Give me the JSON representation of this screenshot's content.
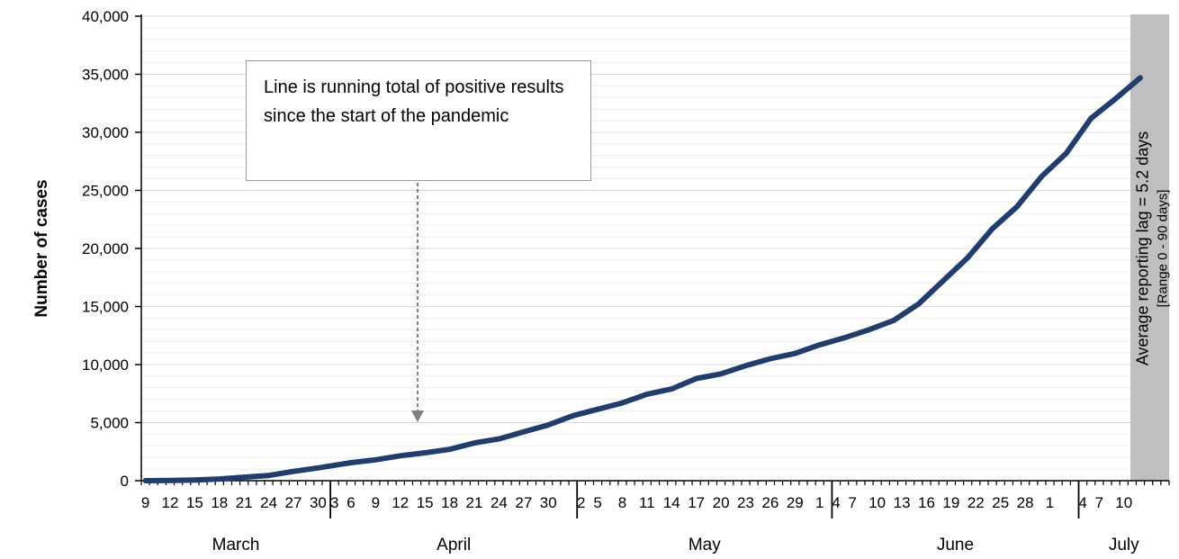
{
  "chart_data": {
    "type": "line",
    "ylabel": "Number of cases",
    "ylim": [
      0,
      40000
    ],
    "y_ticks": [
      "0",
      "5,000",
      "10,000",
      "15,000",
      "20,000",
      "25,000",
      "30,000",
      "35,000",
      "40,000"
    ],
    "y_tick_values": [
      0,
      5000,
      10000,
      15000,
      20000,
      25000,
      30000,
      35000,
      40000
    ],
    "x_start": "2020-03-09",
    "x_end": "2020-07-11",
    "x_tick_labels": [
      "9",
      "12",
      "15",
      "18",
      "21",
      "24",
      "27",
      "30",
      "3",
      "6",
      "9",
      "12",
      "15",
      "18",
      "21",
      "24",
      "27",
      "30",
      "2",
      "5",
      "8",
      "11",
      "14",
      "17",
      "20",
      "23",
      "26",
      "29",
      "1",
      "4",
      "7",
      "10",
      "13",
      "16",
      "19",
      "22",
      "25",
      "28",
      "1",
      "4",
      "7",
      "10"
    ],
    "months": [
      "March",
      "April",
      "May",
      "June",
      "July"
    ],
    "grid": true,
    "series": [
      {
        "name": "",
        "color": "#1f3d6e",
        "points": [
          [
            "2020-03-09",
            0
          ],
          [
            "2020-03-12",
            20
          ],
          [
            "2020-03-15",
            60
          ],
          [
            "2020-03-18",
            150
          ],
          [
            "2020-03-21",
            300
          ],
          [
            "2020-03-24",
            450
          ],
          [
            "2020-03-27",
            800
          ],
          [
            "2020-03-30",
            1100
          ],
          [
            "2020-04-03",
            1550
          ],
          [
            "2020-04-06",
            1800
          ],
          [
            "2020-04-09",
            2150
          ],
          [
            "2020-04-12",
            2400
          ],
          [
            "2020-04-15",
            2700
          ],
          [
            "2020-04-18",
            3250
          ],
          [
            "2020-04-21",
            3600
          ],
          [
            "2020-04-24",
            4200
          ],
          [
            "2020-04-27",
            4800
          ],
          [
            "2020-04-30",
            5600
          ],
          [
            "2020-05-03",
            6150
          ],
          [
            "2020-05-06",
            6700
          ],
          [
            "2020-05-09",
            7450
          ],
          [
            "2020-05-12",
            7900
          ],
          [
            "2020-05-15",
            8800
          ],
          [
            "2020-05-18",
            9200
          ],
          [
            "2020-05-21",
            9900
          ],
          [
            "2020-05-24",
            10500
          ],
          [
            "2020-05-27",
            10950
          ],
          [
            "2020-05-30",
            11700
          ],
          [
            "2020-06-02",
            12300
          ],
          [
            "2020-06-05",
            13000
          ],
          [
            "2020-06-08",
            13800
          ],
          [
            "2020-06-11",
            15200
          ],
          [
            "2020-06-14",
            17200
          ],
          [
            "2020-06-17",
            19200
          ],
          [
            "2020-06-20",
            21700
          ],
          [
            "2020-06-23",
            23600
          ],
          [
            "2020-06-26",
            26200
          ],
          [
            "2020-06-29",
            28200
          ],
          [
            "2020-07-02",
            31200
          ],
          [
            "2020-07-05",
            32900
          ],
          [
            "2020-07-08",
            34700
          ]
        ]
      }
    ],
    "annotation": "Line is running total of positive results since the start of the pandemic",
    "lag_band": {
      "label": "Average reporting lag = 5.2 days",
      "range_label": "[Range 0 - 90 days]",
      "color": "#bfbfbf"
    }
  }
}
